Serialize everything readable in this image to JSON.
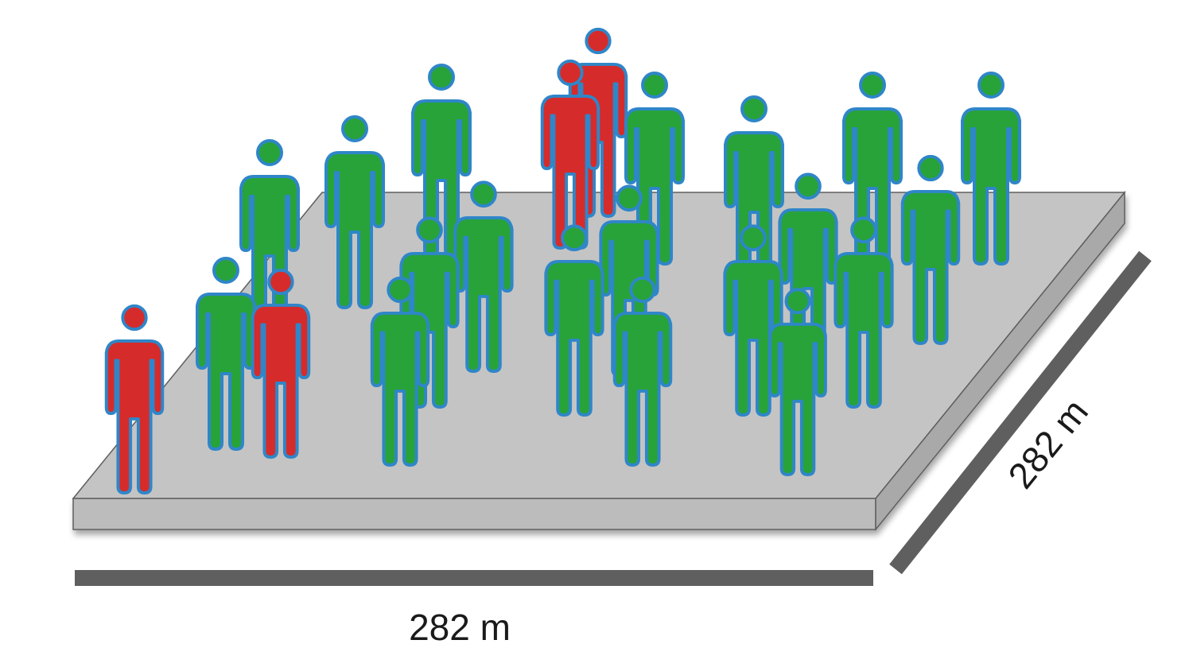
{
  "diagram": {
    "colors": {
      "platform_top": "#c4c4c4",
      "platform_front": "#bcbcbc",
      "platform_side": "#a9a9a9",
      "platform_edge": "#5f5f5f",
      "dimension_bar": "#5f5f5f",
      "outline": "#2f86c8",
      "green": "#27a33a",
      "red": "#d62b2b"
    },
    "dimensions": {
      "width_label": "282 m",
      "depth_label": "282 m"
    },
    "people": [
      {
        "color": "red"
      },
      {
        "color": "green"
      },
      {
        "color": "green"
      },
      {
        "color": "green"
      },
      {
        "color": "green"
      },
      {
        "color": "green"
      },
      {
        "color": "red"
      },
      {
        "color": "green"
      },
      {
        "color": "green"
      },
      {
        "color": "green"
      },
      {
        "color": "green"
      },
      {
        "color": "red"
      },
      {
        "color": "red"
      },
      {
        "color": "green"
      },
      {
        "color": "green"
      },
      {
        "color": "green"
      },
      {
        "color": "green"
      },
      {
        "color": "green"
      },
      {
        "color": "green"
      },
      {
        "color": "green"
      },
      {
        "color": "green"
      },
      {
        "color": "green"
      },
      {
        "color": "green"
      },
      {
        "color": "green"
      },
      {
        "color": "green"
      },
      {
        "color": "green"
      }
    ]
  }
}
